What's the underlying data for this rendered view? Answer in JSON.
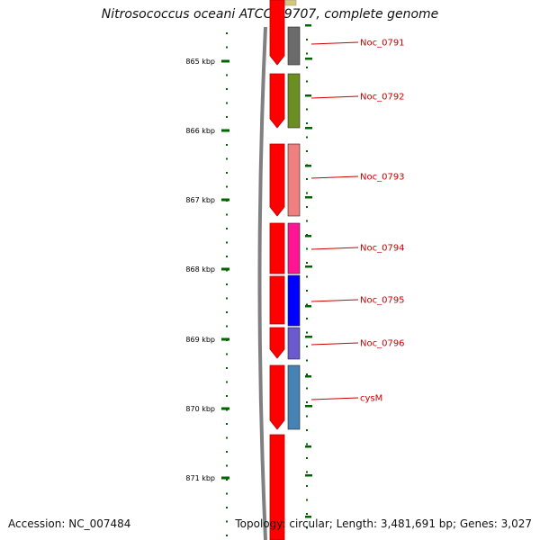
{
  "title": "Nitrosococcus oceani ATCC 19707, complete genome",
  "accession": "Accession: NC_007484",
  "footer": "Topology: circular; Length: 3,481,691 bp; Genes: 3,027",
  "ruler": [
    "865 kbp",
    "866 kbp",
    "867 kbp",
    "868 kbp",
    "869 kbp",
    "870 kbp",
    "871 kbp"
  ],
  "genes": [
    {
      "label": "Noc_0791",
      "color": "#6b6b6b"
    },
    {
      "label": "Noc_0792",
      "color": "#6b8e23"
    },
    {
      "label": "Noc_0793",
      "color": "#f08080"
    },
    {
      "label": "Noc_0794",
      "color": "#ff1493"
    },
    {
      "label": "Noc_0795",
      "color": "#0000ff"
    },
    {
      "label": "Noc_0796",
      "color": "#6a5acd"
    },
    {
      "label": "cysM",
      "color": "#4682b4"
    }
  ],
  "colors": {
    "cds": "#ff0000",
    "label": "#cc0000",
    "ruler": "#006400",
    "backbone": "#808080"
  }
}
